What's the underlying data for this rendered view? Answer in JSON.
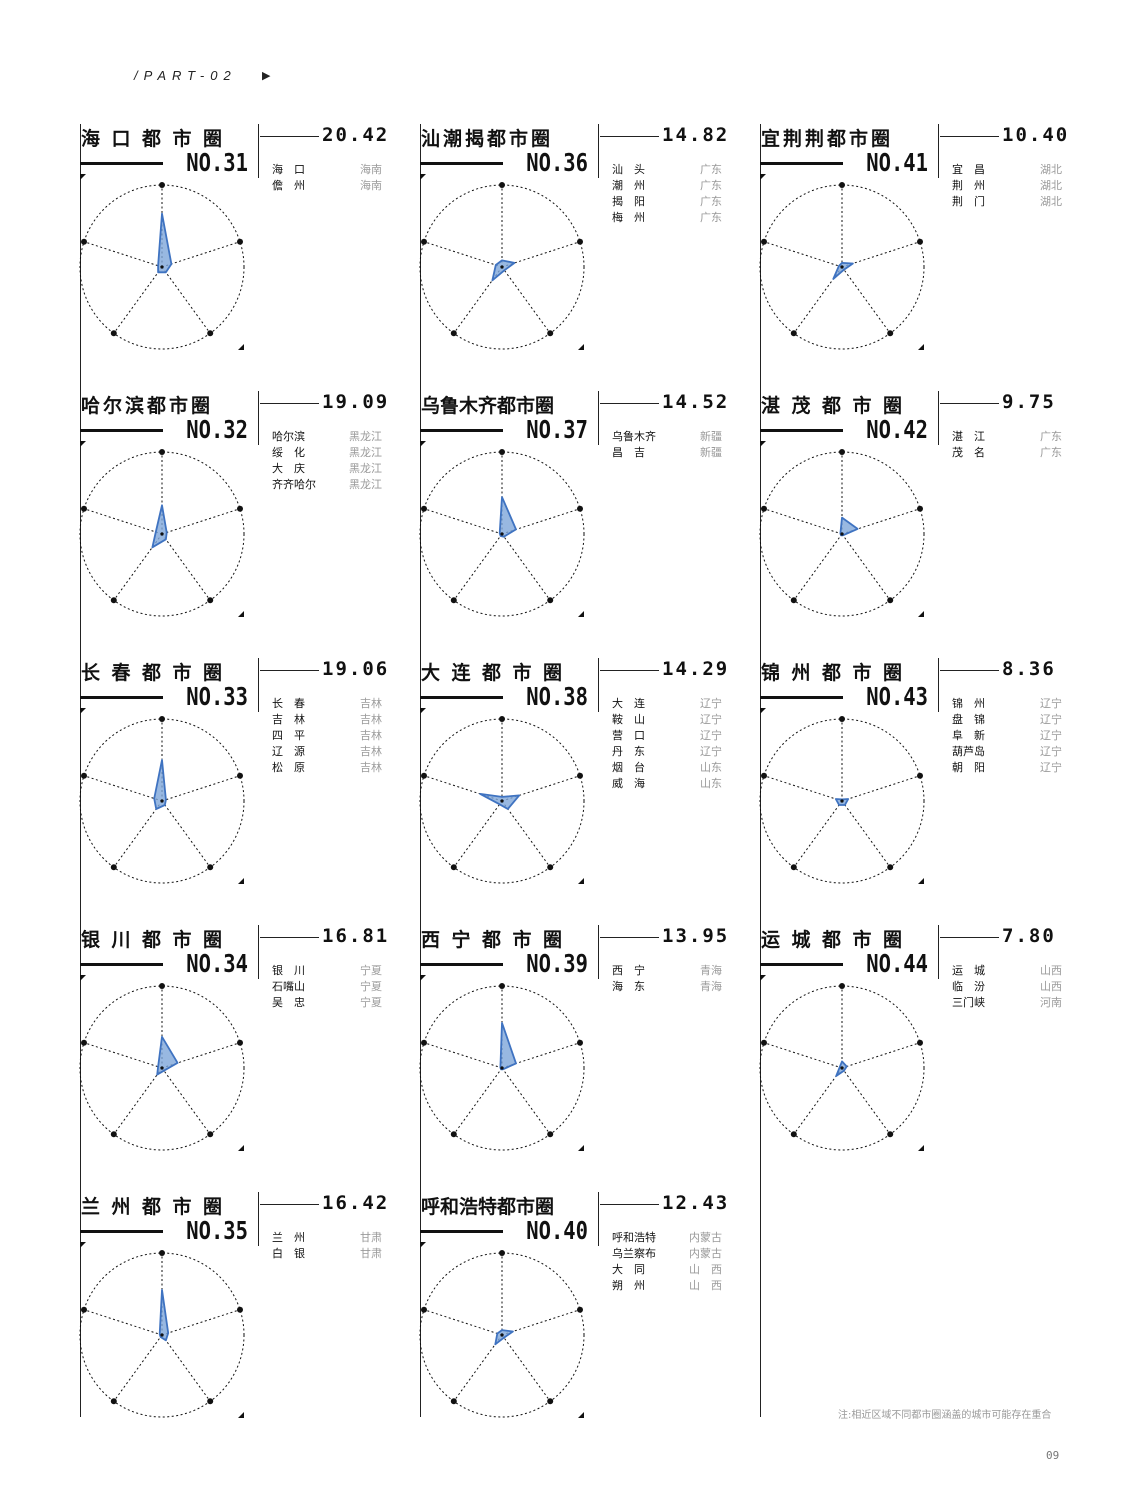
{
  "header": {
    "part_label": "/PART-02",
    "arrow_icon": "play-triangle-icon"
  },
  "note": "注:相近区域不同都市圈涵盖的城市可能存在重合",
  "page_number": "09",
  "colors": {
    "radar_fill": "#7ea6d9",
    "radar_stroke": "#3f73c1",
    "ink": "#111111",
    "muted": "#9a9a9a"
  },
  "chart_data": [
    {
      "type": "radar",
      "title": "海口都市圈",
      "rank": "NO.31",
      "score": "20.42",
      "axes": 5,
      "values": [
        0.65,
        0.12,
        0.08,
        0.08,
        0.05
      ],
      "cities": [
        {
          "name": "海　口",
          "province": "海南"
        },
        {
          "name": "儋　州",
          "province": "海南"
        }
      ]
    },
    {
      "type": "radar",
      "title": "哈尔滨都市圈",
      "rank": "NO.32",
      "score": "19.09",
      "axes": 5,
      "values": [
        0.35,
        0.06,
        0.08,
        0.2,
        0.08
      ],
      "cities": [
        {
          "name": "哈尔滨",
          "province": "黑龙江"
        },
        {
          "name": "绥　化",
          "province": "黑龙江"
        },
        {
          "name": "大　庆",
          "province": "黑龙江"
        },
        {
          "name": "齐齐哈尔",
          "province": "黑龙江"
        }
      ]
    },
    {
      "type": "radar",
      "title": "长春都市圈",
      "rank": "NO.33",
      "score": "19.06",
      "axes": 5,
      "values": [
        0.5,
        0.05,
        0.06,
        0.12,
        0.1
      ],
      "cities": [
        {
          "name": "长　春",
          "province": "吉林"
        },
        {
          "name": "吉　林",
          "province": "吉林"
        },
        {
          "name": "四　平",
          "province": "吉林"
        },
        {
          "name": "辽　源",
          "province": "吉林"
        },
        {
          "name": "松　原",
          "province": "吉林"
        }
      ]
    },
    {
      "type": "radar",
      "title": "银川都市圈",
      "rank": "NO.34",
      "score": "16.81",
      "axes": 5,
      "values": [
        0.38,
        0.2,
        0.04,
        0.1,
        0.05
      ],
      "cities": [
        {
          "name": "银　川",
          "province": "宁夏"
        },
        {
          "name": "石嘴山",
          "province": "宁夏"
        },
        {
          "name": "吴　忠",
          "province": "宁夏"
        }
      ]
    },
    {
      "type": "radar",
      "title": "兰州都市圈",
      "rank": "NO.35",
      "score": "16.42",
      "axes": 5,
      "values": [
        0.55,
        0.08,
        0.08,
        0.03,
        0.03
      ],
      "cities": [
        {
          "name": "兰　州",
          "province": "甘肃"
        },
        {
          "name": "白　银",
          "province": "甘肃"
        }
      ]
    },
    {
      "type": "radar",
      "title": "汕潮揭都市圈",
      "rank": "NO.36",
      "score": "14.82",
      "axes": 5,
      "values": [
        0.08,
        0.16,
        0.05,
        0.2,
        0.08
      ],
      "cities": [
        {
          "name": "汕　头",
          "province": "广东"
        },
        {
          "name": "潮　州",
          "province": "广东"
        },
        {
          "name": "揭　阳",
          "province": "广东"
        },
        {
          "name": "梅　州",
          "province": "广东"
        }
      ]
    },
    {
      "type": "radar",
      "title": "乌鲁木齐都市圈",
      "rank": "NO.37",
      "score": "14.52",
      "axes": 5,
      "values": [
        0.45,
        0.18,
        0.04,
        0.03,
        0.03
      ],
      "cities": [
        {
          "name": "乌鲁木齐",
          "province": "新疆"
        },
        {
          "name": "昌　吉",
          "province": "新疆"
        }
      ]
    },
    {
      "type": "radar",
      "title": "大连都市圈",
      "rank": "NO.38",
      "score": "14.29",
      "axes": 5,
      "values": [
        0.05,
        0.22,
        0.12,
        0.05,
        0.28
      ],
      "cities": [
        {
          "name": "大　连",
          "province": "辽宁"
        },
        {
          "name": "鞍　山",
          "province": "辽宁"
        },
        {
          "name": "营　口",
          "province": "辽宁"
        },
        {
          "name": "丹　东",
          "province": "辽宁"
        },
        {
          "name": "烟　台",
          "province": "山东"
        },
        {
          "name": "威　海",
          "province": "山东"
        }
      ]
    },
    {
      "type": "radar",
      "title": "西宁都市圈",
      "rank": "NO.39",
      "score": "13.95",
      "axes": 5,
      "values": [
        0.55,
        0.18,
        0.02,
        0.02,
        0.02
      ],
      "cities": [
        {
          "name": "西　宁",
          "province": "青海"
        },
        {
          "name": "海　东",
          "province": "青海"
        }
      ]
    },
    {
      "type": "radar",
      "title": "呼和浩特都市圈",
      "rank": "NO.40",
      "score": "12.43",
      "axes": 5,
      "values": [
        0.06,
        0.14,
        0.04,
        0.14,
        0.06
      ],
      "cities": [
        {
          "name": "呼和浩特",
          "province": "内蒙古"
        },
        {
          "name": "乌兰察布",
          "province": "内蒙古"
        },
        {
          "name": "大　同",
          "province": "山　西"
        },
        {
          "name": "朔　州",
          "province": "山　西"
        }
      ]
    },
    {
      "type": "radar",
      "title": "宜荆荆都市圈",
      "rank": "NO.41",
      "score": "10.40",
      "axes": 5,
      "values": [
        0.05,
        0.14,
        0.04,
        0.18,
        0.04
      ],
      "cities": [
        {
          "name": "宜　昌",
          "province": "湖北"
        },
        {
          "name": "荆　州",
          "province": "湖北"
        },
        {
          "name": "荆　门",
          "province": "湖北"
        }
      ]
    },
    {
      "type": "radar",
      "title": "湛茂都市圈",
      "rank": "NO.42",
      "score": "9.75",
      "axes": 5,
      "values": [
        0.2,
        0.2,
        0.02,
        0.02,
        0.02
      ],
      "cities": [
        {
          "name": "湛　江",
          "province": "广东"
        },
        {
          "name": "茂　名",
          "province": "广东"
        }
      ]
    },
    {
      "type": "radar",
      "title": "锦州都市圈",
      "rank": "NO.43",
      "score": "8.36",
      "axes": 5,
      "values": [
        0.02,
        0.08,
        0.06,
        0.06,
        0.08
      ],
      "cities": [
        {
          "name": "锦　州",
          "province": "辽宁"
        },
        {
          "name": "盘　锦",
          "province": "辽宁"
        },
        {
          "name": "阜　新",
          "province": "辽宁"
        },
        {
          "name": "葫芦岛",
          "province": "辽宁"
        },
        {
          "name": "朝　阳",
          "province": "辽宁"
        }
      ]
    },
    {
      "type": "radar",
      "title": "运城都市圈",
      "rank": "NO.44",
      "score": "7.80",
      "axes": 5,
      "values": [
        0.08,
        0.06,
        0.04,
        0.12,
        0.03
      ],
      "cities": [
        {
          "name": "运　城",
          "province": "山西"
        },
        {
          "name": "临　汾",
          "province": "山西"
        },
        {
          "name": "三门峡",
          "province": "河南"
        }
      ]
    }
  ]
}
